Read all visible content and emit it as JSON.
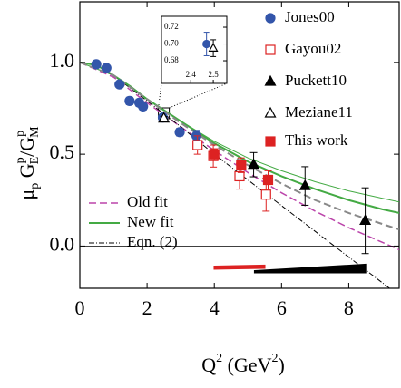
{
  "chart_data": {
    "type": "scatter",
    "xlabel": [
      "Q",
      "2",
      " (GeV",
      "2",
      ")"
    ],
    "ylabel": [
      "μ",
      "p",
      " G",
      "p",
      "E",
      "/G",
      "p",
      "M"
    ],
    "xlim": [
      0,
      9.5
    ],
    "ylim": [
      -0.23,
      1.33
    ],
    "xticks": [
      0,
      2,
      4,
      6,
      8
    ],
    "yticks": [
      {
        "value": 0,
        "label": "0.0"
      },
      {
        "value": 0.5,
        "label": "0.5"
      },
      {
        "value": 1,
        "label": "1.0"
      }
    ],
    "series": [
      {
        "name": "Jones00",
        "color": "#3355aa",
        "marker": "circle",
        "filled": true,
        "x": [
          0.49,
          0.79,
          1.18,
          1.48,
          1.77,
          1.88,
          2.47,
          2.97,
          3.47
        ],
        "values": [
          0.99,
          0.97,
          0.88,
          0.79,
          0.78,
          0.76,
          0.7,
          0.62,
          0.6
        ],
        "errors": [
          0.01,
          0.01,
          0.015,
          0.02,
          0.02,
          0.02,
          0.014,
          0.02,
          0.03
        ]
      },
      {
        "name": "Gayou02",
        "color": "#dd2222",
        "marker": "square",
        "filled": false,
        "x": [
          3.5,
          3.97,
          4.75,
          5.54
        ],
        "values": [
          0.55,
          0.49,
          0.38,
          0.28
        ],
        "errors": [
          0.05,
          0.06,
          0.07,
          0.09
        ]
      },
      {
        "name": "Puckett10",
        "color": "#000000",
        "marker": "triangle",
        "filled": true,
        "x": [
          5.17,
          6.7,
          8.49
        ],
        "values": [
          0.443,
          0.327,
          0.138
        ],
        "errors": [
          0.066,
          0.105,
          0.179
        ]
      },
      {
        "name": "Meziane11",
        "color": "#000000",
        "marker": "triangle",
        "filled": false,
        "x": [
          2.5
        ],
        "values": [
          0.695
        ],
        "errors": [
          0.01
        ]
      },
      {
        "name": "This work",
        "color": "#dd2222",
        "marker": "square",
        "filled": true,
        "x": [
          4.0,
          4.8,
          5.6
        ],
        "values": [
          0.5,
          0.44,
          0.36
        ],
        "errors": [
          0.03,
          0.04,
          0.05
        ]
      }
    ],
    "curves": [
      {
        "name": "Old fit",
        "color": "#bb44aa",
        "dash": "8 4",
        "width": 1.5,
        "x": [
          0,
          1,
          2,
          3,
          4,
          5,
          6,
          7,
          8,
          9,
          9.5
        ],
        "values": [
          1,
          0.92,
          0.78,
          0.65,
          0.52,
          0.4,
          0.29,
          0.19,
          0.1,
          0.02,
          -0.02
        ]
      },
      {
        "name": "New fit",
        "color": "#44aa44",
        "dash": "none",
        "width": 2,
        "x": [
          0,
          0.5,
          1,
          1.5,
          2,
          2.5,
          3,
          3.5,
          4,
          5,
          6,
          7,
          8,
          9,
          9.5
        ],
        "values": [
          1,
          0.985,
          0.93,
          0.87,
          0.8,
          0.74,
          0.68,
          0.62,
          0.56,
          0.46,
          0.38,
          0.31,
          0.25,
          0.2,
          0.18
        ]
      },
      {
        "name": "Eqn. (2)",
        "color": "#000000",
        "dash": "6 2 1 2",
        "width": 1,
        "x": [
          0,
          1,
          2,
          3,
          4,
          5,
          6,
          7,
          8,
          9,
          9.5
        ],
        "values": [
          1,
          0.93,
          0.79,
          0.65,
          0.5,
          0.36,
          0.22,
          0.08,
          -0.06,
          -0.2,
          -0.27
        ]
      },
      {
        "color": "#44aa44",
        "dash": "none",
        "width": 1,
        "x": [
          0,
          1,
          2,
          3,
          4,
          5,
          6,
          7,
          8,
          9,
          9.5
        ],
        "values": [
          1,
          0.93,
          0.8,
          0.68,
          0.57,
          0.48,
          0.41,
          0.35,
          0.3,
          0.26,
          0.24
        ]
      },
      {
        "color": "#888888",
        "dash": "8 4",
        "width": 2,
        "x": [
          0,
          1,
          2,
          3,
          4,
          5,
          6,
          7,
          8,
          9,
          9.5
        ],
        "values": [
          1,
          0.93,
          0.8,
          0.67,
          0.55,
          0.44,
          0.34,
          0.25,
          0.18,
          0.12,
          0.09
        ]
      }
    ],
    "bands": [
      {
        "color": "#dd2222",
        "x": [
          4.0,
          5.5
        ],
        "lower": [
          -0.125,
          -0.12
        ],
        "upper": [
          -0.11,
          -0.105
        ]
      },
      {
        "color": "#000000",
        "x": [
          5.2,
          8.5
        ],
        "lower": [
          -0.145,
          -0.145
        ],
        "upper": [
          -0.135,
          -0.1
        ]
      }
    ],
    "inset": {
      "xlim": [
        2.27,
        2.56
      ],
      "ylim": [
        0.653,
        0.733
      ],
      "xticks": [
        2.4,
        2.5
      ],
      "yticks": [
        0.68,
        {
          "value": 0.7,
          "label": "0.70"
        },
        0.72
      ]
    }
  }
}
